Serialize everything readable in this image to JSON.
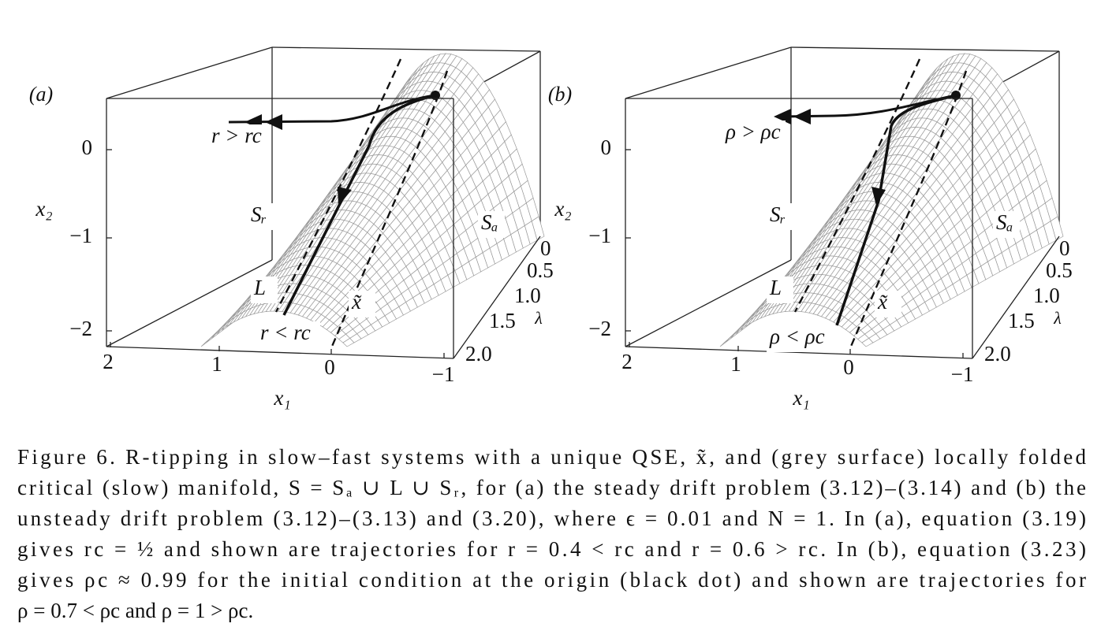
{
  "panels": [
    {
      "label": "(a)",
      "x2_axis": {
        "title": "x₂",
        "ticks": [
          "0",
          "−1",
          "−2"
        ]
      },
      "x1_axis": {
        "title": "x₁",
        "ticks": [
          "2",
          "1",
          "0",
          "−1"
        ]
      },
      "lambda_axis": {
        "title": "λ",
        "ticks": [
          "0",
          "0.5",
          "1.0",
          "1.5",
          "2.0"
        ]
      },
      "annotations": {
        "tipping": "r > rc",
        "repelling": "Sᵣ",
        "attracting": "Sₐ",
        "fold": "L",
        "qse": "x̃",
        "tracking": "r < rc"
      }
    },
    {
      "label": "(b)",
      "x2_axis": {
        "title": "x₂",
        "ticks": [
          "0",
          "−1",
          "−2"
        ]
      },
      "x1_axis": {
        "title": "x₁",
        "ticks": [
          "2",
          "1",
          "0",
          "−1"
        ]
      },
      "lambda_axis": {
        "title": "λ",
        "ticks": [
          "0",
          "0.5",
          "1.0",
          "1.5",
          "2.0"
        ]
      },
      "annotations": {
        "tipping": "ρ > ρc",
        "repelling": "Sᵣ",
        "attracting": "Sₐ",
        "fold": "L",
        "qse": "x̃",
        "tracking": "ρ < ρc"
      }
    }
  ],
  "caption": [
    "Figure 6. R-tipping in slow–fast systems with a unique QSE, x̃, and (grey surface) locally folded",
    "critical (slow) manifold, S = Sₐ ∪ L ∪ Sᵣ, for (a) the steady drift problem (3.12)–(3.14) and (b) the",
    "unsteady drift problem (3.12)–(3.13) and (3.20), where ϵ = 0.01 and N = 1. In (a), equation (3.19)",
    "gives rc = ½ and shown are trajectories for r = 0.4 < rc and r = 0.6 > rc. In (b), equation (3.23)",
    "gives ρc ≈ 0.99 for the initial condition at the origin (black dot) and shown are trajectories for",
    "ρ = 0.7 < ρc and ρ = 1 > ρc."
  ]
}
